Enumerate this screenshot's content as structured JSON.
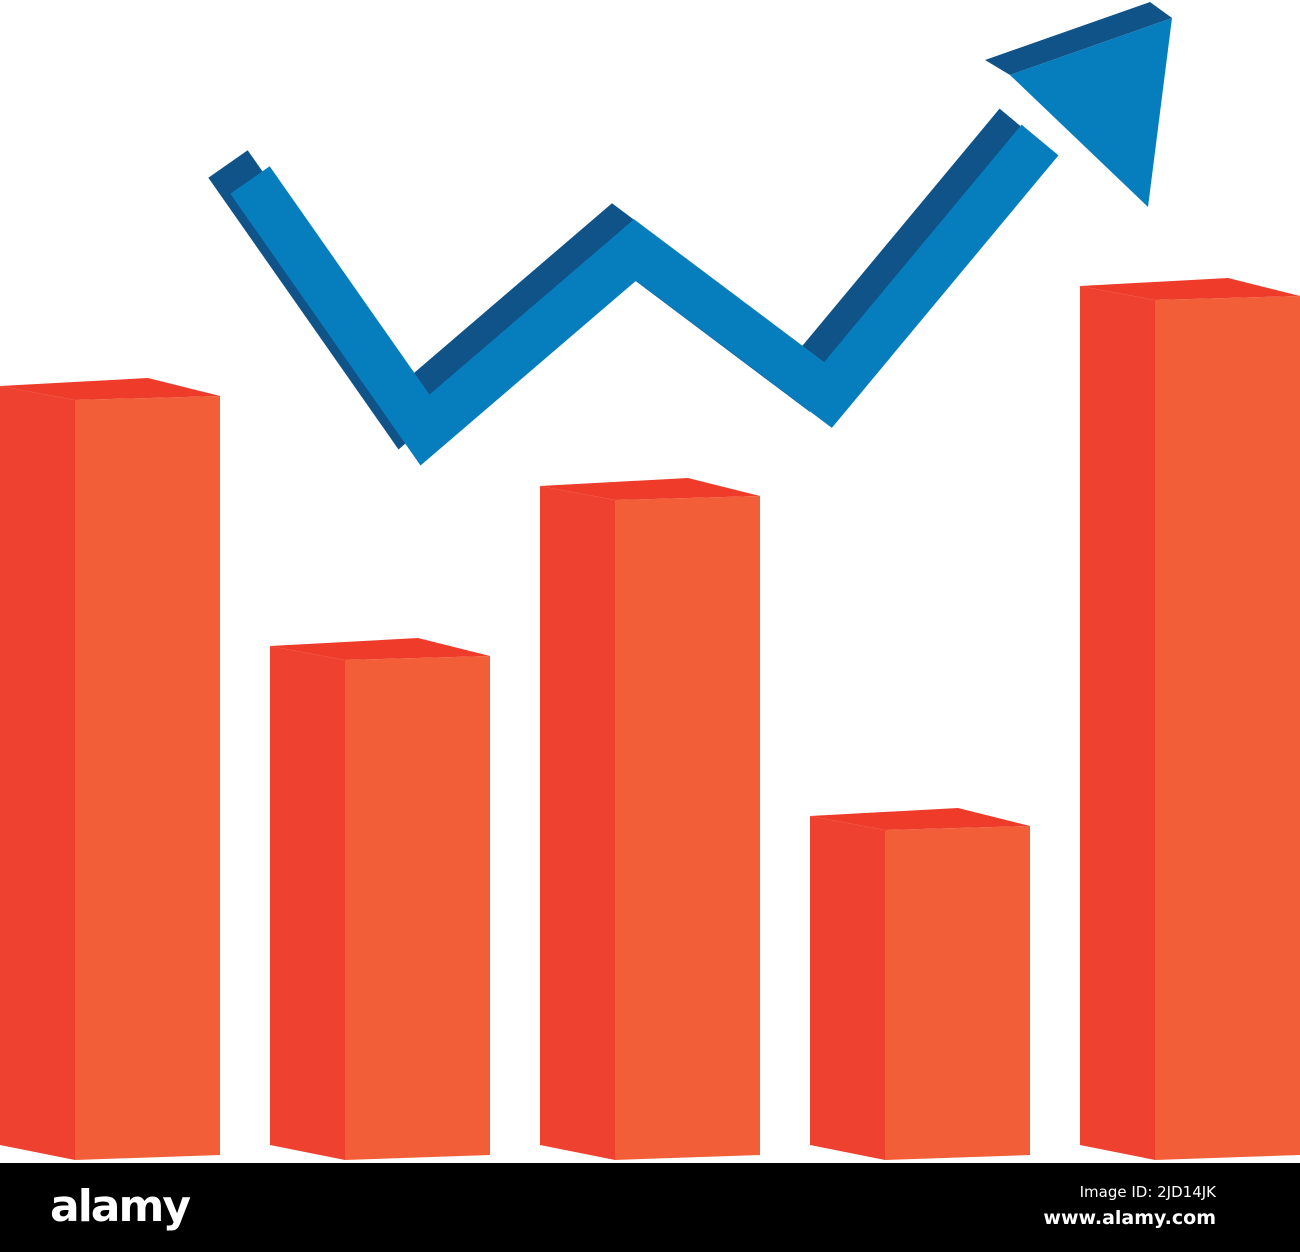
{
  "chart_data": {
    "type": "bar",
    "style": "3d-illustration",
    "categories": [
      "",
      "",
      "",
      "",
      ""
    ],
    "values": [
      76,
      50,
      66,
      33,
      86
    ],
    "ylim": [
      0,
      100
    ],
    "grid": false,
    "title": "",
    "xlabel": "",
    "ylabel": "",
    "trend_arrow": {
      "direction": "up",
      "shape": "zigzag"
    },
    "colors": {
      "bar_front": "#f15e38",
      "bar_side": "#ef4130",
      "bar_top": "#ee3b2a",
      "arrow_front": "#067ebd",
      "arrow_side": "#0f5388"
    }
  },
  "watermark": "alamy",
  "footer": {
    "logo": "alamy",
    "image_id": "Image ID: 2JD14JK",
    "site": "www.alamy.com"
  }
}
